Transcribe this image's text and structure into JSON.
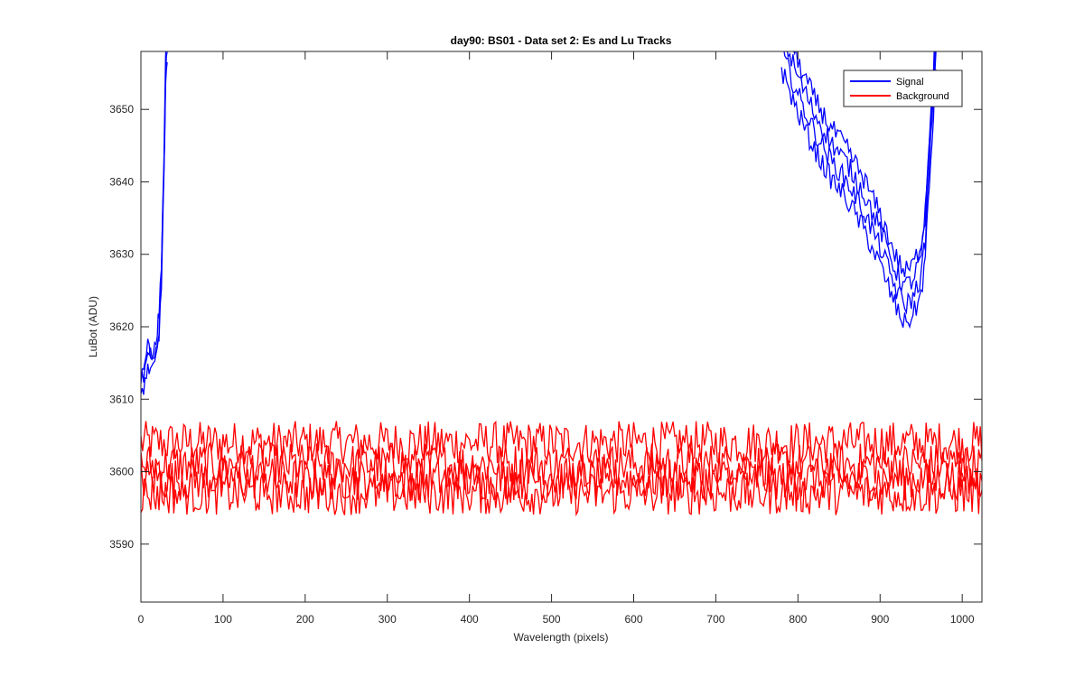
{
  "chart_data": {
    "type": "line",
    "title": "day90: BS01 - Data set 2: Es and Lu Tracks",
    "xlabel": "Wavelength (pixels)",
    "ylabel": "LuBot (ADU)",
    "xlim": [
      0,
      1024
    ],
    "ylim": [
      3582,
      3658
    ],
    "x_ticks": [
      0,
      100,
      200,
      300,
      400,
      500,
      600,
      700,
      800,
      900,
      1000
    ],
    "y_ticks": [
      3590,
      3600,
      3610,
      3620,
      3630,
      3640,
      3650
    ],
    "grid": false,
    "legend_position": "top-right",
    "series": [
      {
        "name": "Signal",
        "color": "#0000ff",
        "segments": [
          {
            "x": [
              0,
              5,
              10,
              15,
              20,
              22,
              25,
              28,
              30,
              32
            ],
            "y": [
              3612,
              3614,
              3616,
              3615,
              3618,
              3620,
              3628,
              3642,
              3655,
              3658
            ]
          },
          {
            "x": [
              780,
              800,
              820,
              840,
              860,
              880,
              900,
              910,
              920,
              930,
              940,
              950,
              955,
              960,
              965,
              968
            ],
            "y": [
              3658,
              3652,
              3647,
              3643,
              3640,
              3636,
              3631,
              3628,
              3625,
              3623,
              3624,
              3627,
              3632,
              3642,
              3652,
              3658
            ]
          }
        ]
      },
      {
        "name": "Background",
        "color": "#ff0000",
        "lines": [
          {
            "level": 3604,
            "amplitude": 3
          },
          {
            "level": 3601,
            "amplitude": 3
          },
          {
            "level": 3599,
            "amplitude": 3
          },
          {
            "level": 3597,
            "amplitude": 3
          }
        ]
      }
    ]
  }
}
